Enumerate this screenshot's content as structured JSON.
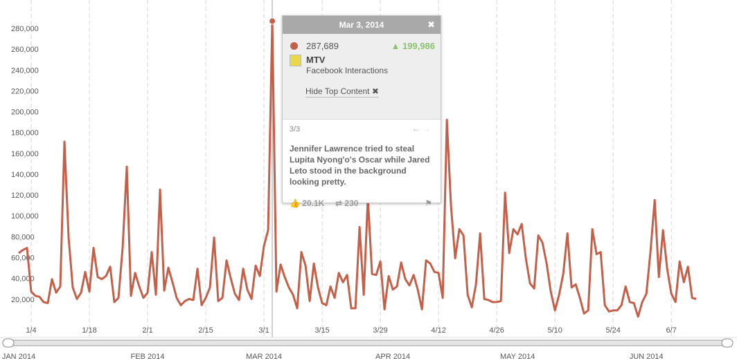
{
  "chart_data": {
    "type": "line",
    "x": [
      1,
      2,
      3,
      4,
      5,
      6,
      7,
      8,
      9,
      10,
      11,
      12,
      13,
      14,
      15,
      16,
      17,
      18,
      19,
      20,
      21,
      22,
      23,
      24,
      25,
      26,
      27,
      28,
      29,
      30,
      31,
      32,
      33,
      34,
      35,
      36,
      37,
      38,
      39,
      40,
      41,
      42,
      43,
      44,
      45,
      46,
      47,
      48,
      49,
      50,
      51,
      52,
      53,
      54,
      55,
      56,
      57,
      58,
      59,
      60,
      61,
      62,
      63,
      64,
      65,
      66,
      67,
      68,
      69,
      70,
      71,
      72,
      73,
      74,
      75,
      76,
      77,
      78,
      79,
      80,
      81,
      82,
      83,
      84,
      85,
      86,
      87,
      88,
      89,
      90,
      91,
      92,
      93,
      94,
      95,
      96,
      97,
      98,
      99,
      100,
      101,
      102,
      103,
      104,
      105,
      106,
      107,
      108,
      109,
      110,
      111,
      112,
      113,
      114,
      115,
      116,
      117,
      118,
      119,
      120,
      121,
      122,
      123,
      124,
      125,
      126,
      127,
      128,
      129,
      130,
      131,
      132,
      133,
      134,
      135,
      136,
      137,
      138,
      139,
      140,
      141,
      142,
      143,
      144,
      145,
      146,
      147,
      148,
      149,
      150,
      151,
      152,
      153,
      154,
      155,
      156,
      157,
      158,
      159,
      160,
      161,
      162,
      163,
      164
    ],
    "series": [
      {
        "name": "MTV",
        "color": "#c4604a",
        "values": [
          65000,
          68000,
          70000,
          28000,
          24000,
          23000,
          18000,
          17000,
          40000,
          27000,
          33000,
          172000,
          80000,
          32000,
          21000,
          27000,
          47000,
          28000,
          70000,
          42000,
          40000,
          43000,
          52000,
          18000,
          22000,
          70000,
          148000,
          24000,
          46000,
          33000,
          22000,
          27000,
          66000,
          25000,
          126000,
          29000,
          51000,
          37000,
          22000,
          15000,
          19000,
          21000,
          20000,
          50000,
          15000,
          22000,
          32000,
          80000,
          19000,
          22000,
          58000,
          41000,
          26000,
          20000,
          50000,
          30000,
          21000,
          53000,
          43000,
          72000,
          87000,
          287689,
          28000,
          54000,
          42000,
          32000,
          25000,
          12000,
          66000,
          53000,
          19000,
          55000,
          32000,
          17000,
          15000,
          33000,
          22000,
          46000,
          37000,
          44000,
          12000,
          12000,
          90000,
          25000,
          118000,
          45000,
          44000,
          57000,
          11000,
          43000,
          30000,
          33000,
          56000,
          40000,
          34000,
          44000,
          30000,
          11000,
          58000,
          55000,
          47000,
          46000,
          22000,
          193000,
          110000,
          60000,
          88000,
          82000,
          25000,
          13000,
          35000,
          84000,
          21000,
          20000,
          18000,
          18000,
          19000,
          123000,
          65000,
          88000,
          83000,
          93000,
          60000,
          36000,
          31000,
          82000,
          75000,
          55000,
          28000,
          10000,
          25000,
          45000,
          84000,
          32000,
          35000,
          22000,
          7000,
          10000,
          88000,
          64000,
          66000,
          15000,
          9000,
          10000,
          10000,
          15000,
          33000,
          18000,
          17000,
          4000,
          18000,
          26000,
          67000,
          116000,
          42000,
          87000,
          50000,
          26000,
          18000,
          57000,
          37000,
          52000,
          22000,
          21000
        ]
      }
    ],
    "xlim": [
      -3.5,
      173.8
    ],
    "xticks": [
      {
        "value": 4,
        "label": "1/4"
      },
      {
        "value": 18,
        "label": "1/18"
      },
      {
        "value": 32,
        "label": "2/1"
      },
      {
        "value": 46,
        "label": "2/15"
      },
      {
        "value": 60,
        "label": "3/1"
      },
      {
        "value": 74,
        "label": "3/15"
      },
      {
        "value": 88,
        "label": "3/29"
      },
      {
        "value": 102,
        "label": "4/12"
      },
      {
        "value": 116,
        "label": "4/26"
      },
      {
        "value": 130,
        "label": "5/10"
      },
      {
        "value": 144,
        "label": "5/24"
      },
      {
        "value": 158,
        "label": "6/7"
      }
    ],
    "navigator_ticks": [
      {
        "value": 1,
        "label": "JAN 2014"
      },
      {
        "value": 32,
        "label": "FEB 2014"
      },
      {
        "value": 60,
        "label": "MAR 2014"
      },
      {
        "value": 91,
        "label": "APR 2014"
      },
      {
        "value": 121,
        "label": "MAY 2014"
      },
      {
        "value": 152,
        "label": "JUN 2014"
      }
    ],
    "ylim": [
      0,
      300000
    ],
    "yticks": [
      {
        "value": 20000,
        "label": "20,000"
      },
      {
        "value": 40000,
        "label": "40,000"
      },
      {
        "value": 60000,
        "label": "60,000"
      },
      {
        "value": 80000,
        "label": "80,000"
      },
      {
        "value": 100000,
        "label": "100,000"
      },
      {
        "value": 120000,
        "label": "120,000"
      },
      {
        "value": 140000,
        "label": "140,000"
      },
      {
        "value": 160000,
        "label": "160,000"
      },
      {
        "value": 180000,
        "label": "180,000"
      },
      {
        "value": 200000,
        "label": "200,000"
      },
      {
        "value": 220000,
        "label": "220,000"
      },
      {
        "value": 240000,
        "label": "240,000"
      },
      {
        "value": 260000,
        "label": "260,000"
      },
      {
        "value": 280000,
        "label": "280,000"
      }
    ],
    "grid": true,
    "highlight_index": 61,
    "tooltip": {
      "date": "Mar 3, 2014",
      "value": "287,689",
      "change": "199,986",
      "source": "MTV",
      "metric": "Facebook Interactions",
      "toggle": "Hide Top Content",
      "page": "3/3",
      "headline": "Jennifer Lawrence tried to steal Lupita Nyong'o's Oscar while Jared Leto stood in the background looking pretty.",
      "likes": "20.1K",
      "shares": "230"
    }
  }
}
